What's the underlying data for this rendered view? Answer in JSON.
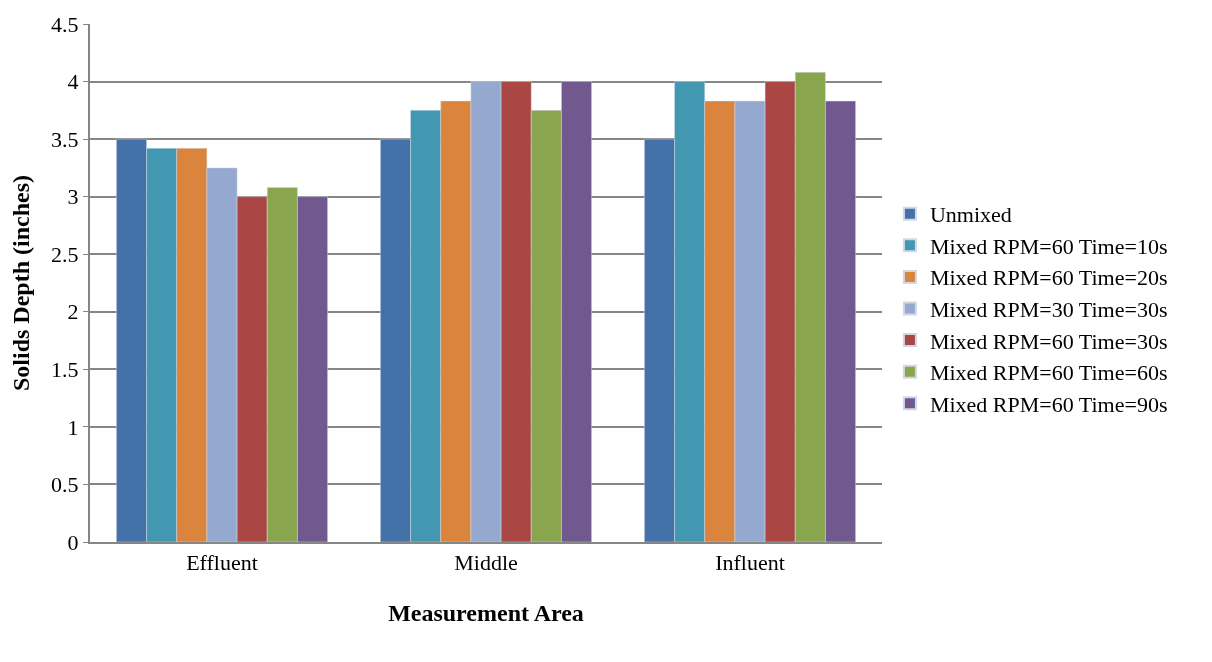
{
  "chart_data": {
    "type": "bar",
    "xlabel": "Measurement Area",
    "ylabel": "Solids Depth (inches)",
    "categories": [
      "Effluent",
      "Middle",
      "Influent"
    ],
    "series": [
      {
        "name": "Unmixed",
        "color": "#4472a8",
        "values": [
          3.5,
          3.5,
          3.5
        ]
      },
      {
        "name": "Mixed RPM=60 Time=10s",
        "color": "#4298b0",
        "values": [
          3.42,
          3.75,
          4.0
        ]
      },
      {
        "name": "Mixed RPM=60 Time=20s",
        "color": "#db843d",
        "values": [
          3.42,
          3.83,
          3.83
        ]
      },
      {
        "name": "Mixed RPM=30 Time=30s",
        "color": "#95a9d0",
        "values": [
          3.25,
          4.0,
          3.83
        ]
      },
      {
        "name": "Mixed RPM=60 Time=30s",
        "color": "#aa4744",
        "values": [
          3.0,
          4.0,
          4.0
        ]
      },
      {
        "name": "Mixed RPM=60 Time=60s",
        "color": "#89a54e",
        "values": [
          3.08,
          3.75,
          4.08
        ]
      },
      {
        "name": "Mixed RPM=60 Time=90s",
        "color": "#71588f",
        "values": [
          3.0,
          4.0,
          3.83
        ]
      }
    ],
    "ylim": [
      0,
      4.5
    ],
    "yticks": [
      0,
      0.5,
      1,
      1.5,
      2,
      2.5,
      3,
      3.5,
      4,
      4.5
    ],
    "grid": "y",
    "legend": "right"
  }
}
